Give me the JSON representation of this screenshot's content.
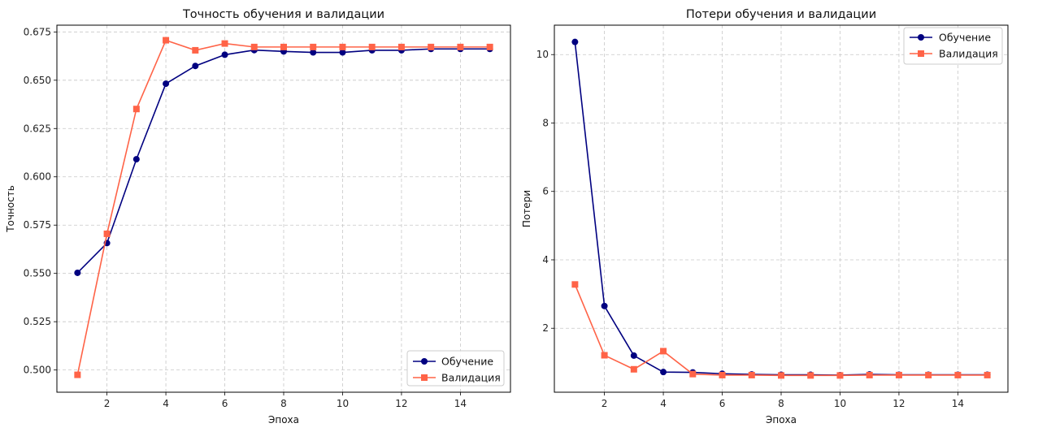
{
  "chart_data": [
    {
      "type": "line",
      "title": "Точность обучения и валидации",
      "xlabel": "Эпоха",
      "ylabel": "Точность",
      "x": [
        1,
        2,
        3,
        4,
        5,
        6,
        7,
        8,
        9,
        10,
        11,
        12,
        13,
        14,
        15
      ],
      "xlim": [
        0.3,
        15.7
      ],
      "ylim": [
        0.4885,
        0.6785
      ],
      "xticks": [
        2,
        4,
        6,
        8,
        10,
        12,
        14
      ],
      "yticks": [
        0.5,
        0.525,
        0.55,
        0.575,
        0.6,
        0.625,
        0.65,
        0.675
      ],
      "ytick_labels": [
        "0.500",
        "0.525",
        "0.550",
        "0.575",
        "0.600",
        "0.625",
        "0.650",
        "0.675"
      ],
      "grid": true,
      "legend_position": "lower-right",
      "series": [
        {
          "name": "Обучение",
          "color": "#000080",
          "marker": "circle",
          "values": [
            0.5503,
            0.5657,
            0.6091,
            0.6482,
            0.6574,
            0.6632,
            0.6656,
            0.6649,
            0.6644,
            0.6644,
            0.6655,
            0.6655,
            0.6662,
            0.6662,
            0.6662
          ]
        },
        {
          "name": "Валидация",
          "color": "#ff6347",
          "marker": "square",
          "values": [
            0.4975,
            0.5705,
            0.6351,
            0.6707,
            0.6655,
            0.669,
            0.6672,
            0.6672,
            0.6672,
            0.6672,
            0.6672,
            0.6672,
            0.6672,
            0.6672,
            0.6672
          ]
        }
      ]
    },
    {
      "type": "line",
      "title": "Потери обучения и валидации",
      "xlabel": "Эпоха",
      "ylabel": "Потери",
      "x": [
        1,
        2,
        3,
        4,
        5,
        6,
        7,
        8,
        9,
        10,
        11,
        12,
        13,
        14,
        15
      ],
      "xlim": [
        0.3,
        15.7
      ],
      "ylim": [
        0.13,
        10.86
      ],
      "xticks": [
        2,
        4,
        6,
        8,
        10,
        12,
        14
      ],
      "yticks": [
        2,
        4,
        6,
        8,
        10
      ],
      "ytick_labels": [
        "2",
        "4",
        "6",
        "8",
        "10"
      ],
      "grid": true,
      "legend_position": "top-right",
      "series": [
        {
          "name": "Обучение",
          "color": "#000080",
          "marker": "circle",
          "values": [
            10.37,
            2.65,
            1.2,
            0.72,
            0.71,
            0.67,
            0.65,
            0.64,
            0.64,
            0.63,
            0.65,
            0.64,
            0.64,
            0.64,
            0.64
          ]
        },
        {
          "name": "Валидация",
          "color": "#ff6347",
          "marker": "square",
          "values": [
            3.28,
            1.21,
            0.8,
            1.33,
            0.66,
            0.63,
            0.63,
            0.62,
            0.62,
            0.62,
            0.63,
            0.63,
            0.63,
            0.63,
            0.63
          ]
        }
      ]
    }
  ]
}
